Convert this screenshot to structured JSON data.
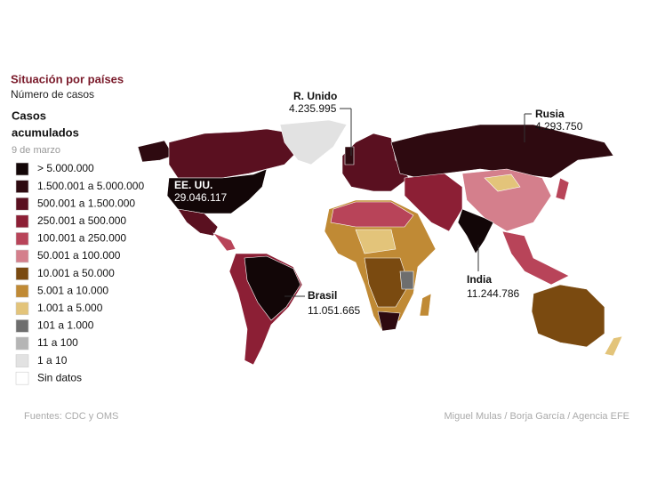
{
  "header": {
    "title": "Situación por países",
    "subtitle": "Número de casos"
  },
  "legend": {
    "title": [
      "Casos",
      "acumulados"
    ],
    "date": "9 de marzo",
    "items": [
      {
        "label": "> 5.000.000",
        "color": "#120607"
      },
      {
        "label": "1.500.001 a 5.000.000",
        "color": "#2e0a10"
      },
      {
        "label": "500.001 a 1.500.000",
        "color": "#5a1020"
      },
      {
        "label": "250.001 a 500.000",
        "color": "#8c1f35"
      },
      {
        "label": "100.001 a 250.000",
        "color": "#b84459"
      },
      {
        "label": "50.001 a 100.000",
        "color": "#d47f8c"
      },
      {
        "label": "10.001 a 50.000",
        "color": "#7a4a10"
      },
      {
        "label": "5.001 a 10.000",
        "color": "#c08a35"
      },
      {
        "label": "1.001 a 5.000",
        "color": "#e3c47a"
      },
      {
        "label": "101 a 1.000",
        "color": "#6e6e6e"
      },
      {
        "label": "11 a 100",
        "color": "#b5b5b5"
      },
      {
        "label": "1 a 10",
        "color": "#e2e2e2"
      },
      {
        "label": "Sin datos",
        "color": "#ffffff"
      }
    ]
  },
  "callouts": [
    {
      "name": "R. Unido",
      "value": "4.235.995"
    },
    {
      "name": "Rusia",
      "value": "4.293.750"
    },
    {
      "name": "EE. UU.",
      "value": "29.046.117"
    },
    {
      "name": "Brasil",
      "value": "11.051.665"
    },
    {
      "name": "India",
      "value": "11.244.786"
    }
  ],
  "footer": {
    "source": "Fuentes: CDC y OMS",
    "credit": "Miguel Mulas / Borja García / Agencia EFE"
  }
}
